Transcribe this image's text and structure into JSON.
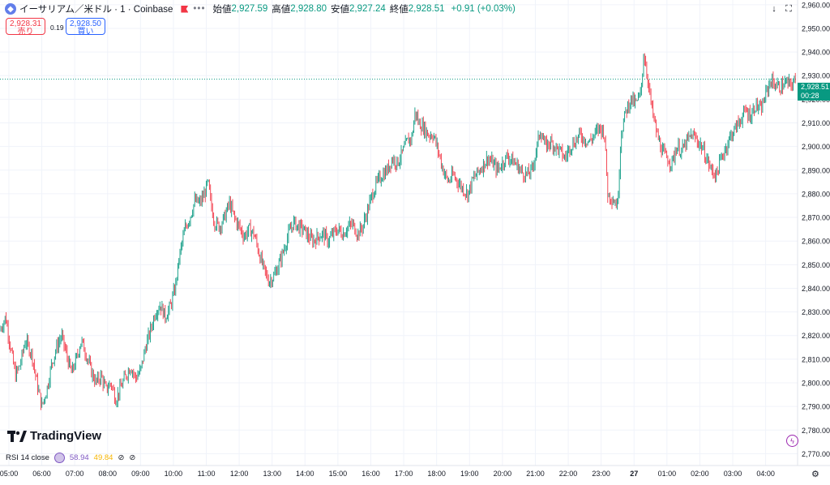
{
  "header": {
    "symbol": "イーサリアム／米ドル · 1 · Coinbase",
    "more": "•••",
    "open_label": "始値",
    "open": "2,927.59",
    "high_label": "高値",
    "high": "2,928.80",
    "low_label": "安値",
    "low": "2,927.24",
    "close_label": "終値",
    "close": "2,928.51",
    "change": "+0.91 (+0.03%)"
  },
  "trade": {
    "sell_price": "2,928.31",
    "sell_label": "売り",
    "spread": "0.19",
    "buy_price": "2,928.50",
    "buy_label": "買い"
  },
  "last_price": {
    "price": "2,928.51",
    "countdown": "00:28"
  },
  "icons": {
    "download": "download-icon",
    "fullscreen": "fullscreen-icon",
    "bolt": "lightning-icon",
    "settings": "gear-icon"
  },
  "logo": {
    "text": "TradingView"
  },
  "rsi": {
    "label": "RSI 14 close",
    "value1": "58.94",
    "value2": "49.84"
  },
  "colors": {
    "up": "#089981",
    "down": "#f23645",
    "grid": "#f0f3fa",
    "accent": "#2962ff"
  },
  "chart_data": {
    "type": "candlestick",
    "ylim": [
      2765,
      2962
    ],
    "ticks_y": [
      2770,
      2780,
      2790,
      2800,
      2810,
      2820,
      2830,
      2840,
      2850,
      2860,
      2870,
      2880,
      2890,
      2900,
      2910,
      2920,
      2930,
      2940,
      2950,
      2960
    ],
    "ticks_y_labels": [
      "2,770.00",
      "2,780.00",
      "2,790.00",
      "2,800.00",
      "2,810.00",
      "2,820.00",
      "2,830.00",
      "2,840.00",
      "2,850.00",
      "2,860.00",
      "2,870.00",
      "2,880.00",
      "2,890.00",
      "2,900.00",
      "2,910.00",
      "2,920.00",
      "2,930.00",
      "2,940.00",
      "2,950.00",
      "2,960.00"
    ],
    "x_ticks": [
      "05:00",
      "06:00",
      "07:00",
      "08:00",
      "09:00",
      "10:00",
      "11:00",
      "12:00",
      "13:00",
      "14:00",
      "15:00",
      "16:00",
      "17:00",
      "18:00",
      "19:00",
      "20:00",
      "21:00",
      "22:00",
      "23:00",
      "27",
      "01:00",
      "02:00",
      "03:00",
      "04:00"
    ],
    "x_range_hours": [
      4.73,
      28.97
    ],
    "current_price": 2928.51,
    "price_path": [
      [
        4.73,
        2822
      ],
      [
        4.9,
        2828
      ],
      [
        5.05,
        2815
      ],
      [
        5.2,
        2803
      ],
      [
        5.35,
        2808
      ],
      [
        5.5,
        2818
      ],
      [
        5.7,
        2812
      ],
      [
        5.85,
        2800
      ],
      [
        6.0,
        2790
      ],
      [
        6.15,
        2797
      ],
      [
        6.3,
        2808
      ],
      [
        6.45,
        2815
      ],
      [
        6.6,
        2820
      ],
      [
        6.75,
        2812
      ],
      [
        6.9,
        2804
      ],
      [
        7.05,
        2810
      ],
      [
        7.2,
        2818
      ],
      [
        7.35,
        2812
      ],
      [
        7.5,
        2805
      ],
      [
        7.65,
        2800
      ],
      [
        7.8,
        2803
      ],
      [
        7.95,
        2797
      ],
      [
        8.1,
        2800
      ],
      [
        8.25,
        2793
      ],
      [
        8.4,
        2798
      ],
      [
        8.55,
        2803
      ],
      [
        8.7,
        2807
      ],
      [
        8.85,
        2802
      ],
      [
        9.0,
        2805
      ],
      [
        9.15,
        2815
      ],
      [
        9.3,
        2822
      ],
      [
        9.45,
        2830
      ],
      [
        9.6,
        2833
      ],
      [
        9.75,
        2828
      ],
      [
        9.9,
        2832
      ],
      [
        10.05,
        2840
      ],
      [
        10.2,
        2855
      ],
      [
        10.35,
        2865
      ],
      [
        10.5,
        2870
      ],
      [
        10.65,
        2877
      ],
      [
        10.8,
        2876
      ],
      [
        10.95,
        2880
      ],
      [
        11.05,
        2885
      ],
      [
        11.15,
        2875
      ],
      [
        11.25,
        2868
      ],
      [
        11.4,
        2866
      ],
      [
        11.55,
        2870
      ],
      [
        11.7,
        2876
      ],
      [
        11.85,
        2870
      ],
      [
        12.0,
        2866
      ],
      [
        12.15,
        2862
      ],
      [
        12.3,
        2865
      ],
      [
        12.45,
        2863
      ],
      [
        12.6,
        2855
      ],
      [
        12.75,
        2848
      ],
      [
        12.9,
        2843
      ],
      [
        13.05,
        2845
      ],
      [
        13.2,
        2850
      ],
      [
        13.35,
        2856
      ],
      [
        13.5,
        2863
      ],
      [
        13.65,
        2868
      ],
      [
        13.8,
        2866
      ],
      [
        13.95,
        2865
      ],
      [
        14.1,
        2862
      ],
      [
        14.25,
        2860
      ],
      [
        14.4,
        2862
      ],
      [
        14.55,
        2863
      ],
      [
        14.7,
        2860
      ],
      [
        14.85,
        2863
      ],
      [
        15.0,
        2865
      ],
      [
        15.15,
        2863
      ],
      [
        15.3,
        2866
      ],
      [
        15.45,
        2867
      ],
      [
        15.6,
        2863
      ],
      [
        15.75,
        2866
      ],
      [
        15.9,
        2873
      ],
      [
        16.05,
        2880
      ],
      [
        16.2,
        2885
      ],
      [
        16.35,
        2888
      ],
      [
        16.5,
        2890
      ],
      [
        16.65,
        2895
      ],
      [
        16.8,
        2893
      ],
      [
        16.95,
        2897
      ],
      [
        17.1,
        2902
      ],
      [
        17.25,
        2904
      ],
      [
        17.35,
        2915
      ],
      [
        17.45,
        2910
      ],
      [
        17.6,
        2908
      ],
      [
        17.75,
        2905
      ],
      [
        17.9,
        2905
      ],
      [
        18.05,
        2898
      ],
      [
        18.2,
        2890
      ],
      [
        18.35,
        2885
      ],
      [
        18.5,
        2888
      ],
      [
        18.65,
        2885
      ],
      [
        18.8,
        2882
      ],
      [
        18.95,
        2880
      ],
      [
        19.1,
        2886
      ],
      [
        19.25,
        2889
      ],
      [
        19.4,
        2892
      ],
      [
        19.55,
        2895
      ],
      [
        19.7,
        2893
      ],
      [
        19.85,
        2890
      ],
      [
        20.0,
        2893
      ],
      [
        20.15,
        2896
      ],
      [
        20.3,
        2894
      ],
      [
        20.45,
        2892
      ],
      [
        20.6,
        2889
      ],
      [
        20.75,
        2888
      ],
      [
        20.9,
        2890
      ],
      [
        21.05,
        2900
      ],
      [
        21.15,
        2907
      ],
      [
        21.3,
        2900
      ],
      [
        21.45,
        2902
      ],
      [
        21.6,
        2900
      ],
      [
        21.75,
        2898
      ],
      [
        21.9,
        2895
      ],
      [
        22.05,
        2900
      ],
      [
        22.2,
        2902
      ],
      [
        22.35,
        2905
      ],
      [
        22.5,
        2903
      ],
      [
        22.65,
        2902
      ],
      [
        22.8,
        2905
      ],
      [
        22.95,
        2908
      ],
      [
        23.1,
        2906
      ],
      [
        23.2,
        2880
      ],
      [
        23.35,
        2878
      ],
      [
        23.5,
        2875
      ],
      [
        23.6,
        2905
      ],
      [
        23.75,
        2915
      ],
      [
        23.9,
        2920
      ],
      [
        24.05,
        2918
      ],
      [
        24.2,
        2922
      ],
      [
        24.3,
        2940
      ],
      [
        24.4,
        2930
      ],
      [
        24.55,
        2915
      ],
      [
        24.7,
        2905
      ],
      [
        24.85,
        2898
      ],
      [
        25.0,
        2895
      ],
      [
        25.15,
        2893
      ],
      [
        25.3,
        2900
      ],
      [
        25.45,
        2898
      ],
      [
        25.6,
        2902
      ],
      [
        25.75,
        2905
      ],
      [
        25.9,
        2903
      ],
      [
        26.05,
        2900
      ],
      [
        26.2,
        2895
      ],
      [
        26.35,
        2890
      ],
      [
        26.5,
        2888
      ],
      [
        26.65,
        2895
      ],
      [
        26.8,
        2900
      ],
      [
        26.95,
        2905
      ],
      [
        27.1,
        2908
      ],
      [
        27.25,
        2912
      ],
      [
        27.4,
        2915
      ],
      [
        27.55,
        2913
      ],
      [
        27.7,
        2918
      ],
      [
        27.85,
        2915
      ],
      [
        28.0,
        2922
      ],
      [
        28.15,
        2928
      ],
      [
        28.3,
        2926
      ],
      [
        28.45,
        2925
      ],
      [
        28.6,
        2927
      ],
      [
        28.75,
        2926
      ],
      [
        28.97,
        2928.51
      ]
    ]
  }
}
